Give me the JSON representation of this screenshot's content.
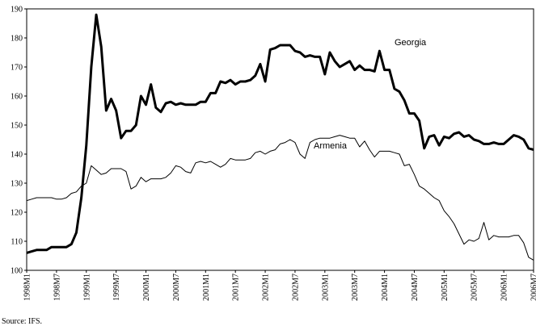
{
  "chart_data": {
    "type": "line",
    "categories": [
      "1998M1",
      null,
      null,
      null,
      null,
      null,
      "1998M7",
      null,
      null,
      null,
      null,
      null,
      "1999M1",
      null,
      null,
      null,
      null,
      null,
      "1999M7",
      null,
      null,
      null,
      null,
      null,
      "2000M1",
      null,
      null,
      null,
      null,
      null,
      "2000M7",
      null,
      null,
      null,
      null,
      null,
      "2001M1",
      null,
      null,
      null,
      null,
      null,
      "2001M7",
      null,
      null,
      null,
      null,
      null,
      "2002M1",
      null,
      null,
      null,
      null,
      null,
      "2002M7",
      null,
      null,
      null,
      null,
      null,
      "2003M1",
      null,
      null,
      null,
      null,
      null,
      "2003M7",
      null,
      null,
      null,
      null,
      null,
      "2004M1",
      null,
      null,
      null,
      null,
      null,
      "2004M7",
      null,
      null,
      null,
      null,
      null,
      "2005M1",
      null,
      null,
      null,
      null,
      null,
      "2005M7",
      null,
      null,
      null,
      null,
      null,
      "2006M1",
      null,
      null,
      null,
      null,
      null,
      "2006M7"
    ],
    "series": [
      {
        "name": "Georgia",
        "color": "#000000",
        "line_width": 3,
        "values": [
          106,
          106.5,
          107,
          107,
          107,
          108,
          108,
          108,
          108,
          109,
          113,
          125,
          143,
          170,
          188,
          177,
          155,
          159,
          155,
          145.5,
          148,
          148,
          150,
          160,
          157,
          164,
          156,
          154.5,
          157.5,
          158,
          157,
          157.5,
          157,
          157,
          157,
          158,
          158,
          161,
          161,
          165,
          164.5,
          165.5,
          164,
          165,
          165,
          165.5,
          167,
          171,
          165,
          176,
          176.5,
          177.5,
          177.5,
          177.5,
          175.5,
          175,
          173.5,
          174,
          173.5,
          173.5,
          167.5,
          175,
          172,
          170,
          171,
          172,
          169,
          170.5,
          169,
          169,
          168.5,
          175.5,
          169,
          169,
          162.5,
          161.5,
          158.5,
          154,
          154,
          151.5,
          142,
          146,
          146.5,
          143,
          146,
          145.5,
          147,
          147.5,
          146,
          146.5,
          145,
          144.5,
          143.5,
          143.5,
          144,
          143.5,
          143.5,
          145,
          146.5,
          146,
          145,
          142,
          141.5
        ]
      },
      {
        "name": "Armenia",
        "color": "#000000",
        "line_width": 1,
        "values": [
          124,
          124.5,
          125,
          125,
          125,
          125,
          124.5,
          124.5,
          125,
          126.5,
          127,
          129,
          130,
          136,
          134.5,
          133,
          133.5,
          135,
          135,
          135,
          134,
          128,
          129,
          132,
          130.5,
          131.5,
          131.5,
          131.5,
          132,
          133.5,
          136,
          135.5,
          134,
          133.5,
          137,
          137.5,
          137,
          137.5,
          136.5,
          135.5,
          136.5,
          138.5,
          138,
          138,
          138,
          138.5,
          140.5,
          141,
          140,
          141,
          141.5,
          143.5,
          144,
          145,
          144,
          140,
          138.5,
          144,
          145,
          145.5,
          145.5,
          145.5,
          146,
          146.5,
          146,
          145.5,
          145.5,
          142.5,
          144.5,
          141.5,
          139,
          141,
          141,
          141,
          140.5,
          140,
          136,
          136.5,
          133,
          129,
          128,
          126.5,
          125,
          124,
          120.5,
          118.5,
          116,
          112.5,
          109,
          110.5,
          110,
          111,
          116.5,
          110.5,
          112,
          111.5,
          111.5,
          111.5,
          112,
          112,
          109.5,
          104.5,
          103.5
        ]
      }
    ],
    "ylim": [
      100,
      190
    ],
    "yticks": [
      100,
      110,
      120,
      130,
      140,
      150,
      160,
      170,
      180,
      190
    ],
    "annotations": [
      "Georgia",
      "Armenia"
    ],
    "source": "Source: IFS."
  }
}
